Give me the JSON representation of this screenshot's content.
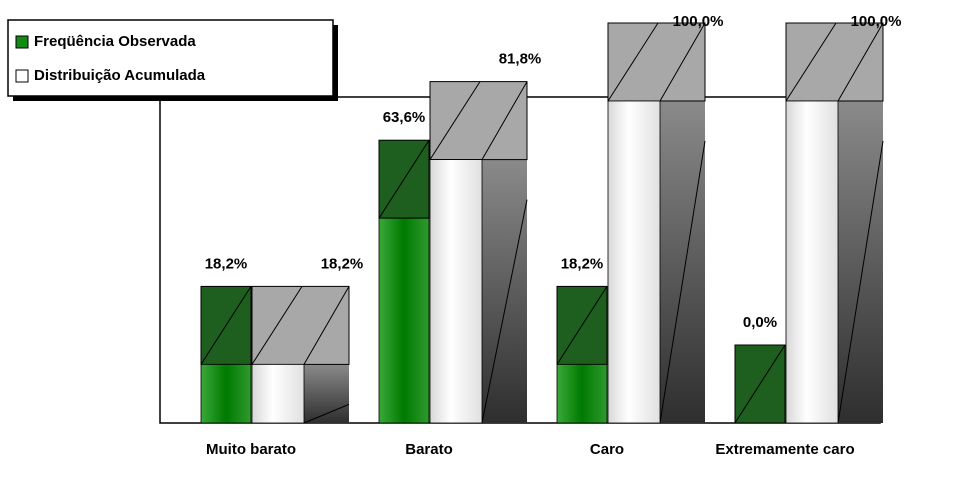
{
  "chart_data": {
    "type": "bar3d",
    "categories": [
      "Muito barato",
      "Barato",
      "Caro",
      "Extremamente caro"
    ],
    "series": [
      {
        "name": "Freqüência Observada",
        "color": "#138a13",
        "values": [
          18.2,
          63.6,
          18.2,
          0.0
        ],
        "value_labels": [
          "18,2%",
          "63,6%",
          "18,2%",
          "0,0%"
        ]
      },
      {
        "name": "Distribuição Acumulada",
        "color": "#ffffff",
        "values": [
          18.2,
          81.8,
          100,
          100
        ],
        "value_labels": [
          "18,2%",
          "81,8%",
          "100,0%",
          "100,0%"
        ]
      }
    ],
    "ylim": [
      0,
      100
    ],
    "legend": "top-left"
  }
}
